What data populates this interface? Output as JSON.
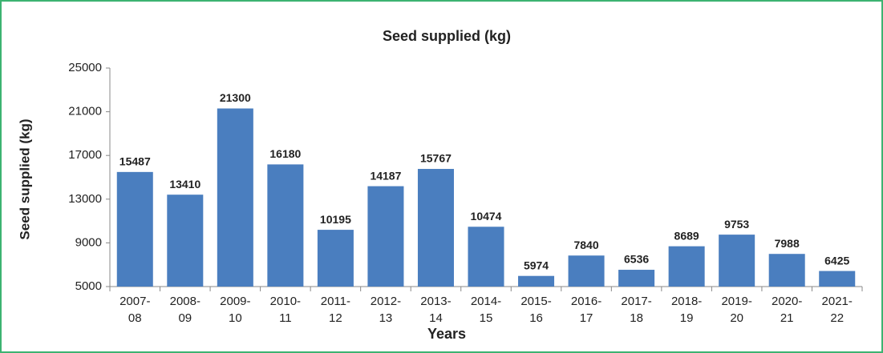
{
  "chart_data": {
    "type": "bar",
    "title": "Seed supplied (kg)",
    "y_label": "Seed supplied (kg)",
    "x_label": "Years",
    "categories": [
      "2007-08",
      "2008-09",
      "2009-10",
      "2010-11",
      "2011-12",
      "2012-13",
      "2013-14",
      "2014-15",
      "2015-16",
      "2016-17",
      "2017-18",
      "2018-19",
      "2019-20",
      "2020-21",
      "2021-22"
    ],
    "values": [
      15487,
      13410,
      21300,
      16180,
      10195,
      14187,
      15767,
      10474,
      5974,
      7840,
      6536,
      8689,
      9753,
      7988,
      6425
    ],
    "color": "#4a7ebf",
    "ylim": [
      5000,
      25000
    ],
    "yticks": [
      5000,
      9000,
      13000,
      17000,
      21000,
      25000
    ],
    "grid": false
  }
}
